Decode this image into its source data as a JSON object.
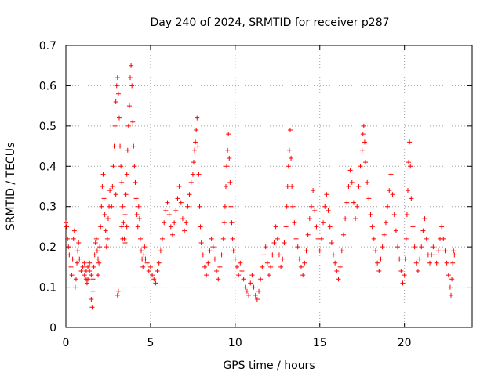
{
  "chart_data": {
    "type": "scatter",
    "title": "Day 240 of 2024, SRMTID for receiver p287",
    "xlabel": "GPS time / hours",
    "ylabel": "SRMTID / TECUs",
    "xlim": [
      0,
      24
    ],
    "ylim": [
      0,
      0.7
    ],
    "x_ticks": [
      0,
      5,
      10,
      15,
      20
    ],
    "x_tick_labels": [
      "0",
      "5",
      "10",
      "15",
      "20"
    ],
    "y_ticks": [
      0,
      0.1,
      0.2,
      0.3,
      0.4,
      0.5,
      0.6,
      0.7
    ],
    "y_tick_labels": [
      "0",
      "0.1",
      "0.2",
      "0.3",
      "0.4",
      "0.5",
      "0.6",
      "0.7"
    ],
    "grid": true,
    "marker": "+",
    "color": "#ff0000",
    "series": [
      {
        "name": "SRMTID",
        "points": [
          [
            0.0,
            0.26
          ],
          [
            0.05,
            0.25
          ],
          [
            0.1,
            0.22
          ],
          [
            0.15,
            0.2
          ],
          [
            0.2,
            0.18
          ],
          [
            0.3,
            0.15
          ],
          [
            0.35,
            0.13
          ],
          [
            0.4,
            0.17
          ],
          [
            0.45,
            0.22
          ],
          [
            0.5,
            0.24
          ],
          [
            0.55,
            0.1
          ],
          [
            0.6,
            0.12
          ],
          [
            0.65,
            0.16
          ],
          [
            0.7,
            0.19
          ],
          [
            0.75,
            0.21
          ],
          [
            0.8,
            0.17
          ],
          [
            0.9,
            0.14
          ],
          [
            1.0,
            0.15
          ],
          [
            1.1,
            0.13
          ],
          [
            1.2,
            0.12
          ],
          [
            1.3,
            0.15
          ],
          [
            1.4,
            0.14
          ],
          [
            1.5,
            0.13
          ],
          [
            1.1,
            0.16
          ],
          [
            1.2,
            0.14
          ],
          [
            1.3,
            0.12
          ],
          [
            1.4,
            0.16
          ],
          [
            1.25,
            0.11
          ],
          [
            1.5,
            0.07
          ],
          [
            1.55,
            0.05
          ],
          [
            1.6,
            0.09
          ],
          [
            1.6,
            0.12
          ],
          [
            1.65,
            0.15
          ],
          [
            1.7,
            0.18
          ],
          [
            1.75,
            0.21
          ],
          [
            1.8,
            0.22
          ],
          [
            1.85,
            0.19
          ],
          [
            1.9,
            0.17
          ],
          [
            1.9,
            0.13
          ],
          [
            1.95,
            0.16
          ],
          [
            2.0,
            0.2
          ],
          [
            2.05,
            0.25
          ],
          [
            2.1,
            0.3
          ],
          [
            2.15,
            0.35
          ],
          [
            2.2,
            0.38
          ],
          [
            2.25,
            0.32
          ],
          [
            2.3,
            0.28
          ],
          [
            2.35,
            0.24
          ],
          [
            2.4,
            0.2
          ],
          [
            2.45,
            0.22
          ],
          [
            2.5,
            0.27
          ],
          [
            2.55,
            0.3
          ],
          [
            2.6,
            0.34
          ],
          [
            2.7,
            0.3
          ],
          [
            2.75,
            0.35
          ],
          [
            2.8,
            0.4
          ],
          [
            2.85,
            0.45
          ],
          [
            2.9,
            0.5
          ],
          [
            2.95,
            0.56
          ],
          [
            3.0,
            0.6
          ],
          [
            3.05,
            0.62
          ],
          [
            3.1,
            0.58
          ],
          [
            3.15,
            0.52
          ],
          [
            3.2,
            0.45
          ],
          [
            3.25,
            0.4
          ],
          [
            3.3,
            0.36
          ],
          [
            3.35,
            0.3
          ],
          [
            3.4,
            0.26
          ],
          [
            3.45,
            0.22
          ],
          [
            3.5,
            0.28
          ],
          [
            3.55,
            0.33
          ],
          [
            3.6,
            0.38
          ],
          [
            3.65,
            0.44
          ],
          [
            3.7,
            0.5
          ],
          [
            3.75,
            0.55
          ],
          [
            3.8,
            0.62
          ],
          [
            3.85,
            0.65
          ],
          [
            3.9,
            0.6
          ],
          [
            3.95,
            0.51
          ],
          [
            4.0,
            0.45
          ],
          [
            4.05,
            0.4
          ],
          [
            3.3,
            0.25
          ],
          [
            3.35,
            0.22
          ],
          [
            3.1,
            0.09
          ],
          [
            3.05,
            0.08
          ],
          [
            2.95,
            0.33
          ],
          [
            3.5,
            0.21
          ],
          [
            3.6,
            0.25
          ],
          [
            4.1,
            0.36
          ],
          [
            4.15,
            0.32
          ],
          [
            4.2,
            0.28
          ],
          [
            4.25,
            0.25
          ],
          [
            4.3,
            0.3
          ],
          [
            4.35,
            0.27
          ],
          [
            4.4,
            0.22
          ],
          [
            4.45,
            0.19
          ],
          [
            4.5,
            0.17
          ],
          [
            4.55,
            0.15
          ],
          [
            4.6,
            0.18
          ],
          [
            4.65,
            0.2
          ],
          [
            4.7,
            0.17
          ],
          [
            4.8,
            0.16
          ],
          [
            4.9,
            0.14
          ],
          [
            5.0,
            0.15
          ],
          [
            5.1,
            0.13
          ],
          [
            5.2,
            0.12
          ],
          [
            5.3,
            0.11
          ],
          [
            5.4,
            0.14
          ],
          [
            5.5,
            0.16
          ],
          [
            5.6,
            0.19
          ],
          [
            5.7,
            0.22
          ],
          [
            5.8,
            0.26
          ],
          [
            5.9,
            0.29
          ],
          [
            6.0,
            0.31
          ],
          [
            6.1,
            0.28
          ],
          [
            6.2,
            0.25
          ],
          [
            6.3,
            0.23
          ],
          [
            6.4,
            0.26
          ],
          [
            6.5,
            0.29
          ],
          [
            6.6,
            0.32
          ],
          [
            6.7,
            0.35
          ],
          [
            6.8,
            0.31
          ],
          [
            6.9,
            0.27
          ],
          [
            7.0,
            0.24
          ],
          [
            7.1,
            0.26
          ],
          [
            7.2,
            0.3
          ],
          [
            7.3,
            0.33
          ],
          [
            7.4,
            0.36
          ],
          [
            7.5,
            0.38
          ],
          [
            7.55,
            0.41
          ],
          [
            7.6,
            0.44
          ],
          [
            7.65,
            0.46
          ],
          [
            7.7,
            0.49
          ],
          [
            7.75,
            0.52
          ],
          [
            7.8,
            0.45
          ],
          [
            7.85,
            0.38
          ],
          [
            7.9,
            0.3
          ],
          [
            7.95,
            0.25
          ],
          [
            8.0,
            0.21
          ],
          [
            8.1,
            0.18
          ],
          [
            8.2,
            0.15
          ],
          [
            8.3,
            0.13
          ],
          [
            8.4,
            0.16
          ],
          [
            8.5,
            0.19
          ],
          [
            8.6,
            0.22
          ],
          [
            8.7,
            0.2
          ],
          [
            8.8,
            0.17
          ],
          [
            8.9,
            0.14
          ],
          [
            9.0,
            0.12
          ],
          [
            9.1,
            0.15
          ],
          [
            9.2,
            0.18
          ],
          [
            9.3,
            0.22
          ],
          [
            9.35,
            0.26
          ],
          [
            9.4,
            0.3
          ],
          [
            9.45,
            0.35
          ],
          [
            9.5,
            0.4
          ],
          [
            9.55,
            0.44
          ],
          [
            9.6,
            0.48
          ],
          [
            9.65,
            0.42
          ],
          [
            9.7,
            0.36
          ],
          [
            9.75,
            0.3
          ],
          [
            9.8,
            0.26
          ],
          [
            9.85,
            0.22
          ],
          [
            9.9,
            0.19
          ],
          [
            10.0,
            0.17
          ],
          [
            10.1,
            0.15
          ],
          [
            10.2,
            0.13
          ],
          [
            10.3,
            0.16
          ],
          [
            10.4,
            0.14
          ],
          [
            10.5,
            0.12
          ],
          [
            10.6,
            0.1
          ],
          [
            10.7,
            0.09
          ],
          [
            10.8,
            0.08
          ],
          [
            10.9,
            0.11
          ],
          [
            11.0,
            0.13
          ],
          [
            11.1,
            0.1
          ],
          [
            11.2,
            0.08
          ],
          [
            11.3,
            0.07
          ],
          [
            11.4,
            0.09
          ],
          [
            11.5,
            0.12
          ],
          [
            11.6,
            0.15
          ],
          [
            11.7,
            0.18
          ],
          [
            11.8,
            0.2
          ],
          [
            11.9,
            0.16
          ],
          [
            12.0,
            0.13
          ],
          [
            12.1,
            0.15
          ],
          [
            12.2,
            0.18
          ],
          [
            12.3,
            0.21
          ],
          [
            12.4,
            0.25
          ],
          [
            12.5,
            0.22
          ],
          [
            12.6,
            0.18
          ],
          [
            12.7,
            0.15
          ],
          [
            12.8,
            0.17
          ],
          [
            12.9,
            0.21
          ],
          [
            13.0,
            0.25
          ],
          [
            13.05,
            0.3
          ],
          [
            13.1,
            0.35
          ],
          [
            13.15,
            0.4
          ],
          [
            13.2,
            0.44
          ],
          [
            13.25,
            0.49
          ],
          [
            13.3,
            0.42
          ],
          [
            13.35,
            0.35
          ],
          [
            13.4,
            0.3
          ],
          [
            13.5,
            0.26
          ],
          [
            13.6,
            0.22
          ],
          [
            13.7,
            0.2
          ],
          [
            13.8,
            0.17
          ],
          [
            13.9,
            0.15
          ],
          [
            14.0,
            0.13
          ],
          [
            14.1,
            0.16
          ],
          [
            14.2,
            0.19
          ],
          [
            14.3,
            0.23
          ],
          [
            14.4,
            0.27
          ],
          [
            14.5,
            0.3
          ],
          [
            14.6,
            0.34
          ],
          [
            14.7,
            0.29
          ],
          [
            14.8,
            0.25
          ],
          [
            14.9,
            0.22
          ],
          [
            15.0,
            0.19
          ],
          [
            15.1,
            0.22
          ],
          [
            15.2,
            0.26
          ],
          [
            15.3,
            0.3
          ],
          [
            15.4,
            0.33
          ],
          [
            15.5,
            0.29
          ],
          [
            15.6,
            0.25
          ],
          [
            15.7,
            0.21
          ],
          [
            15.8,
            0.18
          ],
          [
            15.9,
            0.16
          ],
          [
            16.0,
            0.14
          ],
          [
            16.1,
            0.12
          ],
          [
            16.2,
            0.15
          ],
          [
            16.3,
            0.19
          ],
          [
            16.4,
            0.23
          ],
          [
            16.5,
            0.27
          ],
          [
            16.6,
            0.31
          ],
          [
            16.7,
            0.35
          ],
          [
            16.8,
            0.39
          ],
          [
            16.9,
            0.36
          ],
          [
            17.0,
            0.31
          ],
          [
            17.1,
            0.27
          ],
          [
            17.2,
            0.3
          ],
          [
            17.3,
            0.35
          ],
          [
            17.4,
            0.4
          ],
          [
            17.5,
            0.44
          ],
          [
            17.55,
            0.48
          ],
          [
            17.6,
            0.5
          ],
          [
            17.65,
            0.46
          ],
          [
            17.7,
            0.41
          ],
          [
            17.8,
            0.36
          ],
          [
            17.9,
            0.32
          ],
          [
            18.0,
            0.28
          ],
          [
            18.1,
            0.25
          ],
          [
            18.2,
            0.22
          ],
          [
            18.3,
            0.19
          ],
          [
            18.4,
            0.16
          ],
          [
            18.5,
            0.14
          ],
          [
            18.6,
            0.17
          ],
          [
            18.7,
            0.2
          ],
          [
            18.8,
            0.23
          ],
          [
            18.9,
            0.26
          ],
          [
            19.0,
            0.3
          ],
          [
            19.1,
            0.34
          ],
          [
            19.2,
            0.38
          ],
          [
            19.3,
            0.33
          ],
          [
            19.4,
            0.28
          ],
          [
            19.5,
            0.24
          ],
          [
            19.6,
            0.2
          ],
          [
            19.7,
            0.17
          ],
          [
            19.8,
            0.14
          ],
          [
            19.9,
            0.11
          ],
          [
            20.0,
            0.13
          ],
          [
            20.05,
            0.17
          ],
          [
            20.1,
            0.22
          ],
          [
            20.15,
            0.28
          ],
          [
            20.2,
            0.34
          ],
          [
            20.25,
            0.41
          ],
          [
            20.3,
            0.46
          ],
          [
            20.35,
            0.4
          ],
          [
            20.4,
            0.32
          ],
          [
            20.5,
            0.25
          ],
          [
            20.6,
            0.2
          ],
          [
            20.7,
            0.16
          ],
          [
            20.8,
            0.14
          ],
          [
            20.9,
            0.17
          ],
          [
            21.0,
            0.2
          ],
          [
            21.1,
            0.24
          ],
          [
            21.2,
            0.27
          ],
          [
            21.3,
            0.22
          ],
          [
            21.4,
            0.18
          ],
          [
            21.5,
            0.16
          ],
          [
            21.6,
            0.18
          ],
          [
            21.7,
            0.2
          ],
          [
            21.8,
            0.18
          ],
          [
            21.9,
            0.16
          ],
          [
            22.0,
            0.19
          ],
          [
            22.1,
            0.22
          ],
          [
            22.2,
            0.25
          ],
          [
            22.3,
            0.22
          ],
          [
            22.4,
            0.19
          ],
          [
            22.5,
            0.16
          ],
          [
            22.6,
            0.13
          ],
          [
            22.7,
            0.1
          ],
          [
            22.75,
            0.08
          ],
          [
            22.8,
            0.12
          ],
          [
            22.85,
            0.16
          ],
          [
            22.9,
            0.19
          ],
          [
            22.95,
            0.18
          ]
        ]
      }
    ]
  }
}
